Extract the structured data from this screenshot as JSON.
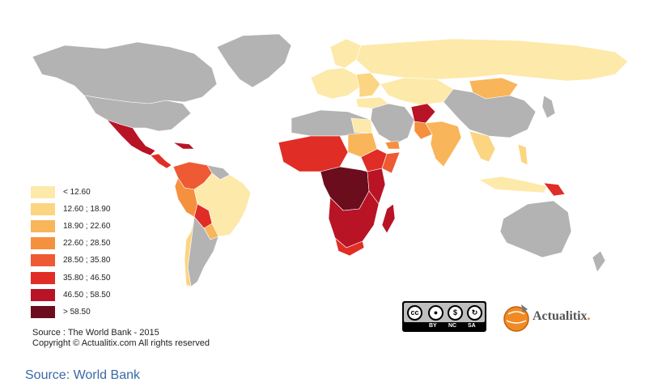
{
  "legend": {
    "items": [
      {
        "label": "< 12.60",
        "color": "#fde9a9"
      },
      {
        "label": "12.60 ; 18.90",
        "color": "#fcd582"
      },
      {
        "label": "18.90 ; 22.60",
        "color": "#f9b55a"
      },
      {
        "label": "22.60 ; 28.50",
        "color": "#f5903f"
      },
      {
        "label": "28.50 ; 35.80",
        "color": "#ee5a33"
      },
      {
        "label": "35.80 ; 46.50",
        "color": "#e02d26"
      },
      {
        "label": "46.50 ; 58.50",
        "color": "#b81425"
      },
      {
        "label": "> 58.50",
        "color": "#6b0d1c"
      }
    ]
  },
  "map_source": {
    "line1": "Source : The World Bank - 2015",
    "line2": "Copyright © Actualitix.com All rights reserved"
  },
  "license": {
    "cc": "cc",
    "by": "BY",
    "nc": "NC",
    "sa": "SA"
  },
  "brand": {
    "name": "Actualitix",
    "dot": "."
  },
  "page_source": "Source: World Bank",
  "colors": {
    "no_data": "#b3b3b3",
    "border": "#ffffff"
  }
}
